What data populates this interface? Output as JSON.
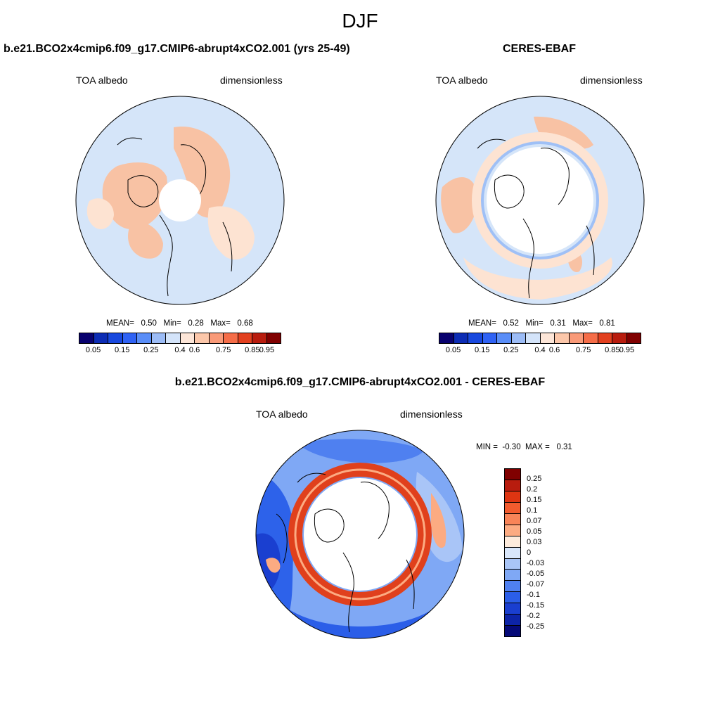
{
  "season": "DJF",
  "panels": {
    "model": {
      "title": "b.e21.BCO2x4cmip6.f09_g17.CMIP6-abrupt4xCO2.001 (yrs 25-49)",
      "variable": "TOA albedo",
      "units": "dimensionless",
      "mean_label": "MEAN=",
      "mean": "0.50",
      "min_label": "Min=",
      "min": "0.28",
      "max_label": "Max=",
      "max": "0.68"
    },
    "obs": {
      "title": "CERES-EBAF",
      "variable": "TOA albedo",
      "units": "dimensionless",
      "mean_label": "MEAN=",
      "mean": "0.52",
      "min_label": "Min=",
      "min": "0.31",
      "max_label": "Max=",
      "max": "0.81"
    },
    "diff": {
      "title": "b.e21.BCO2x4cmip6.f09_g17.CMIP6-abrupt4xCO2.001 - CERES-EBAF",
      "variable": "TOA albedo",
      "units": "dimensionless",
      "min_label": "MIN =",
      "min": "-0.30",
      "max_label": "MAX =",
      "max": "0.31"
    }
  },
  "colorbar_main": {
    "colors": [
      "#08016e",
      "#0c2cb4",
      "#1848de",
      "#2f62f4",
      "#5a8ef8",
      "#9cbcf6",
      "#d4e4fa",
      "#fde6d8",
      "#fcc7aa",
      "#f99a78",
      "#f56d48",
      "#e2401f",
      "#b81c0e",
      "#800000"
    ],
    "labels": [
      "0.05",
      "0.15",
      "0.25",
      "0.4",
      "0.6",
      "0.75",
      "0.85",
      "0.95"
    ]
  },
  "colorbar_diff": {
    "colors": [
      "#800000",
      "#b81c0e",
      "#de3512",
      "#f25b2e",
      "#f88458",
      "#fcab82",
      "#fdebdc",
      "#d9e7fb",
      "#a9c5f7",
      "#7fa8f5",
      "#4f80f0",
      "#2b5ee8",
      "#1a3fd0",
      "#0d24a8",
      "#050a78"
    ],
    "labels": [
      "0.25",
      "0.2",
      "0.15",
      "0.1",
      "0.07",
      "0.05",
      "0.03",
      "0",
      "-0.03",
      "-0.05",
      "-0.07",
      "-0.1",
      "-0.15",
      "-0.2",
      "-0.25"
    ]
  },
  "colors": {
    "ocean": "#d5e5f9",
    "land_warm": "#f8c2a4",
    "land_light": "#fde3d2",
    "diff_blue": "#2d62ea",
    "diff_lightblue": "#9fc0f6",
    "diff_red": "#e0401c"
  }
}
